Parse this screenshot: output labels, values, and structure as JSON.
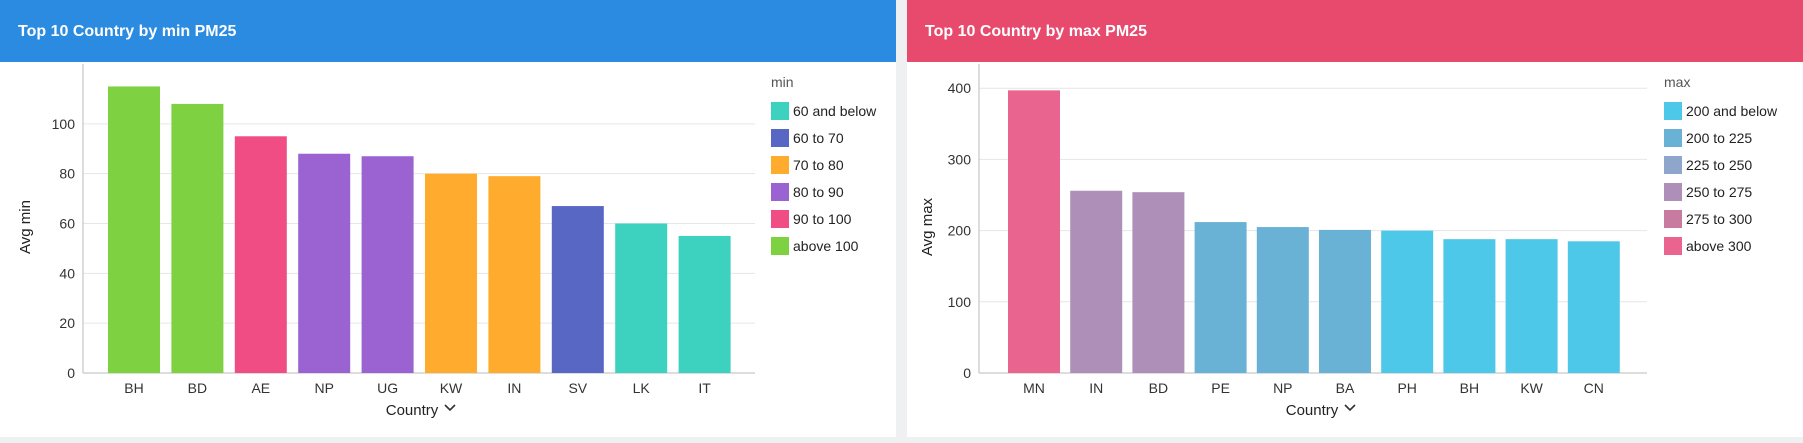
{
  "colors": {
    "header_min": "#2b8be0",
    "header_max": "#e84a6e"
  },
  "chart_data": [
    {
      "type": "bar",
      "title": "Top 10 Country by min PM25",
      "xlabel": "Country",
      "ylabel": "Avg min",
      "ylim": [
        0,
        120
      ],
      "yticks": [
        "0",
        "20",
        "40",
        "60",
        "80",
        "100"
      ],
      "grid": true,
      "legend_position": "right",
      "legend_title": "min",
      "legend": [
        {
          "label": "60 and below",
          "color": "#3dd1c0"
        },
        {
          "label": "60 to 70",
          "color": "#5866c4"
        },
        {
          "label": "70 to 80",
          "color": "#ffab2e"
        },
        {
          "label": "80 to 90",
          "color": "#9b63d1"
        },
        {
          "label": "90 to 100",
          "color": "#ef4d84"
        },
        {
          "label": "above 100",
          "color": "#7ed242"
        }
      ],
      "categories": [
        "BH",
        "BD",
        "AE",
        "NP",
        "UG",
        "KW",
        "IN",
        "SV",
        "LK",
        "IT"
      ],
      "values": [
        115,
        108,
        95,
        88,
        87,
        80,
        79,
        67,
        60,
        55
      ],
      "bar_colors": [
        "#7ed242",
        "#7ed242",
        "#ef4d84",
        "#9b63d1",
        "#9b63d1",
        "#ffab2e",
        "#ffab2e",
        "#5866c4",
        "#3dd1c0",
        "#3dd1c0"
      ]
    },
    {
      "type": "bar",
      "title": "Top 10 Country by max PM25",
      "xlabel": "Country",
      "ylabel": "Avg max",
      "ylim": [
        0,
        420
      ],
      "yticks": [
        "0",
        "100",
        "200",
        "300",
        "400"
      ],
      "grid": true,
      "legend_position": "right",
      "legend_title": "max",
      "legend": [
        {
          "label": "200 and below",
          "color": "#4ec8e8"
        },
        {
          "label": "200 to 225",
          "color": "#6ab1d6"
        },
        {
          "label": "225 to 250",
          "color": "#8ea6cc"
        },
        {
          "label": "250 to 275",
          "color": "#ad8fb7"
        },
        {
          "label": "275 to 300",
          "color": "#c87aa0"
        },
        {
          "label": "above 300",
          "color": "#e9658f"
        }
      ],
      "categories": [
        "MN",
        "IN",
        "BD",
        "PE",
        "NP",
        "BA",
        "PH",
        "BH",
        "KW",
        "CN"
      ],
      "values": [
        397,
        256,
        254,
        212,
        205,
        201,
        200,
        188,
        188,
        185
      ],
      "bar_colors": [
        "#e9658f",
        "#ad8fb7",
        "#ad8fb7",
        "#6ab1d6",
        "#6ab1d6",
        "#6ab1d6",
        "#4ec8e8",
        "#4ec8e8",
        "#4ec8e8",
        "#4ec8e8"
      ]
    }
  ]
}
